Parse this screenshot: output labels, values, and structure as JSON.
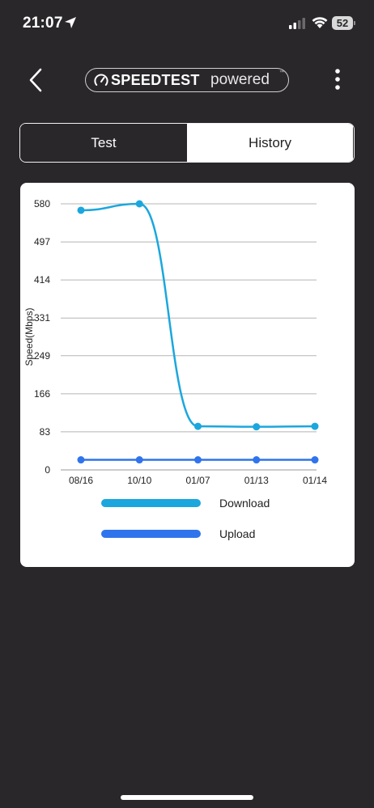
{
  "status_bar": {
    "time": "21:07",
    "battery": "52"
  },
  "header": {
    "logo_brand": "SPEEDTEST",
    "logo_sub": "powered",
    "logo_tm": "™"
  },
  "tabs": [
    {
      "label": "Test",
      "selected": true
    },
    {
      "label": "History",
      "selected": false
    }
  ],
  "colors": {
    "background": "#2a272b",
    "download": "#1ba7dd",
    "upload": "#2f74ec"
  },
  "chart_data": {
    "type": "line",
    "ylabel": "Speed(Mbps)",
    "xlabel": "",
    "categories": [
      "08/16",
      "10/10",
      "01/07",
      "01/13",
      "01/14"
    ],
    "y_ticks": [
      "0",
      "83",
      "166",
      "249",
      "331",
      "414",
      "497",
      "580"
    ],
    "ylim": [
      0,
      580
    ],
    "grid": true,
    "legend_position": "bottom",
    "series": [
      {
        "name": "Download",
        "color": "#1ba7dd",
        "values": [
          566,
          580,
          95,
          94,
          95
        ]
      },
      {
        "name": "Upload",
        "color": "#2f74ec",
        "values": [
          22,
          22,
          22,
          22,
          22
        ]
      }
    ]
  }
}
